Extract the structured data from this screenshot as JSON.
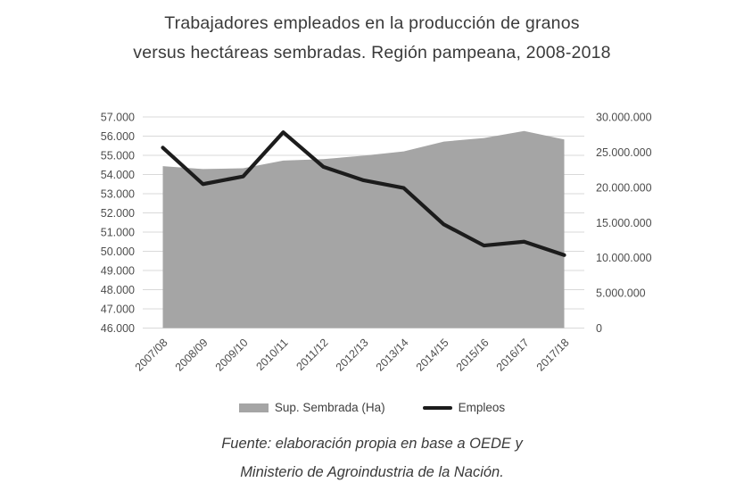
{
  "title": {
    "line1": "Trabajadores empleados en la producción de granos",
    "line2": "versus hectáreas sembradas. Región pampeana, 2008-2018"
  },
  "colors": {
    "area": "#a5a5a5",
    "line": "#1c1c1c",
    "grid": "#d9d9d9",
    "tick_text": "#4d4d4d"
  },
  "chart_data": {
    "type": "area+line combo",
    "categories": [
      "2007/08",
      "2008/09",
      "2009/10",
      "2010/11",
      "2011/12",
      "2012/13",
      "2013/14",
      "2014/15",
      "2015/16",
      "2016/17",
      "2017/18"
    ],
    "series": [
      {
        "name": "Sup. Sembrada (Ha)",
        "type": "area",
        "axis": "right",
        "color": "#a5a5a5",
        "values": [
          23000000,
          22600000,
          22700000,
          23800000,
          24000000,
          24500000,
          25100000,
          26500000,
          27000000,
          28000000,
          26800000
        ]
      },
      {
        "name": "Empleos",
        "type": "line",
        "axis": "left",
        "color": "#1c1c1c",
        "values": [
          55400,
          53500,
          53900,
          56200,
          54400,
          53700,
          53300,
          51400,
          50300,
          50500,
          49800
        ]
      }
    ],
    "left_axis": {
      "min": 46000,
      "max": 57000,
      "step": 1000,
      "ticks": [
        "57.000",
        "56.000",
        "55.000",
        "54.000",
        "53.000",
        "52.000",
        "51.000",
        "50.000",
        "49.000",
        "48.000",
        "47.000",
        "46.000"
      ]
    },
    "right_axis": {
      "min": 0,
      "max": 30000000,
      "step": 5000000,
      "ticks": [
        "30.000.000",
        "25.000.000",
        "20.000.000",
        "15.000.000",
        "10.000.000",
        "5.000.000",
        "0"
      ]
    },
    "grid": true,
    "legend_position": "bottom"
  },
  "legend": {
    "area_label": "Sup. Sembrada (Ha)",
    "line_label": "Empleos"
  },
  "source": {
    "line1": "Fuente: elaboración propia en base a OEDE y",
    "line2": "Ministerio de Agroindustria de la Nación."
  }
}
